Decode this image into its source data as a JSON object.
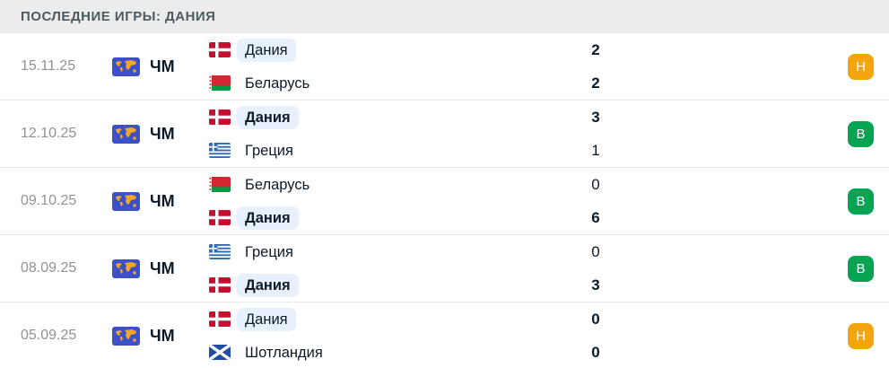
{
  "header": {
    "title": "ПОСЛЕДНИЕ ИГРЫ: ДАНИЯ"
  },
  "colors": {
    "header_bg": "#ececec",
    "header_text": "#4e5a61",
    "text_dark": "#0c1a28",
    "date_gray": "#8e9297",
    "denmark_pill_bg": "#e9f0fd",
    "badge_win_green": "#04a452",
    "badge_draw_orange": "#f4a40f",
    "comp_icon_blue": "#3b50c9",
    "comp_icon_yellow": "#f5a623"
  },
  "matches": [
    {
      "date": "15.11.25",
      "competition": "ЧМ",
      "competition_icon": "world-map-icon",
      "home": {
        "name": "Дания",
        "flag": "denmark",
        "score": "2",
        "name_bold": false,
        "score_bold": true,
        "highlight": true
      },
      "away": {
        "name": "Беларусь",
        "flag": "belarus",
        "score": "2",
        "name_bold": false,
        "score_bold": true,
        "highlight": false
      },
      "result": {
        "label": "Н",
        "type": "draw"
      }
    },
    {
      "date": "12.10.25",
      "competition": "ЧМ",
      "competition_icon": "world-map-icon",
      "home": {
        "name": "Дания",
        "flag": "denmark",
        "score": "3",
        "name_bold": true,
        "score_bold": true,
        "highlight": true
      },
      "away": {
        "name": "Греция",
        "flag": "greece",
        "score": "1",
        "name_bold": false,
        "score_bold": false,
        "highlight": false
      },
      "result": {
        "label": "В",
        "type": "win"
      }
    },
    {
      "date": "09.10.25",
      "competition": "ЧМ",
      "competition_icon": "world-map-icon",
      "home": {
        "name": "Беларусь",
        "flag": "belarus",
        "score": "0",
        "name_bold": false,
        "score_bold": false,
        "highlight": false
      },
      "away": {
        "name": "Дания",
        "flag": "denmark",
        "score": "6",
        "name_bold": true,
        "score_bold": true,
        "highlight": true
      },
      "result": {
        "label": "В",
        "type": "win"
      }
    },
    {
      "date": "08.09.25",
      "competition": "ЧМ",
      "competition_icon": "world-map-icon",
      "home": {
        "name": "Греция",
        "flag": "greece",
        "score": "0",
        "name_bold": false,
        "score_bold": false,
        "highlight": false
      },
      "away": {
        "name": "Дания",
        "flag": "denmark",
        "score": "3",
        "name_bold": true,
        "score_bold": true,
        "highlight": true
      },
      "result": {
        "label": "В",
        "type": "win"
      }
    },
    {
      "date": "05.09.25",
      "competition": "ЧМ",
      "competition_icon": "world-map-icon",
      "home": {
        "name": "Дания",
        "flag": "denmark",
        "score": "0",
        "name_bold": false,
        "score_bold": true,
        "highlight": true
      },
      "away": {
        "name": "Шотландия",
        "flag": "scotland",
        "score": "0",
        "name_bold": false,
        "score_bold": true,
        "highlight": false
      },
      "result": {
        "label": "Н",
        "type": "draw"
      }
    }
  ]
}
